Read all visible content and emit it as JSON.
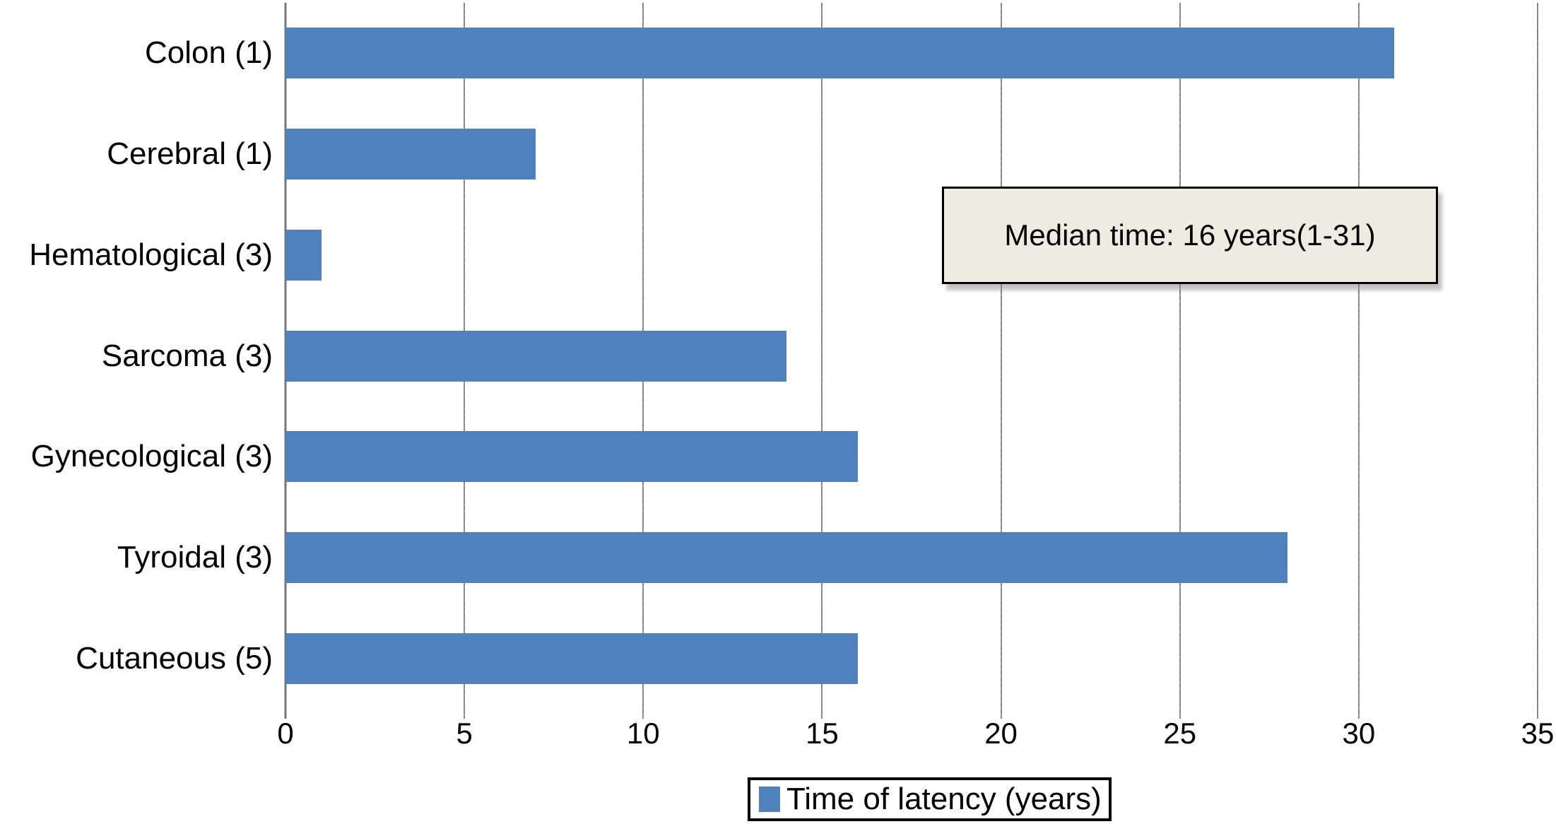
{
  "figure": {
    "background": "#ffffff"
  },
  "annotation": {
    "text": "Median time: 16 years(1-31)",
    "bg_color": "#eeece1",
    "border_color": "#000000"
  },
  "legend": {
    "label": "Time of latency (years)",
    "swatch_color": "#4f81bd"
  },
  "chart_data": {
    "type": "bar",
    "orientation": "horizontal",
    "categories": [
      "Colon (1)",
      "Cerebral (1)",
      "Hematological (3)",
      "Sarcoma (3)",
      "Gynecological (3)",
      "Tyroidal (3)",
      "Cutaneous (5)"
    ],
    "values": [
      31,
      7,
      1,
      14,
      16,
      28,
      16
    ],
    "series_name": "Time of latency (years)",
    "title": "",
    "xlabel": "",
    "ylabel": "",
    "xlim": [
      0,
      35
    ],
    "xticks": [
      0,
      5,
      10,
      15,
      20,
      25,
      30,
      35
    ],
    "grid": "vertical-gridlines",
    "legend_position": "bottom-center",
    "annotation": "Median time: 16 years(1-31)",
    "bar_color": "#4f81bd",
    "gridline_color": "#868686",
    "axis_line_color": "#767676"
  }
}
